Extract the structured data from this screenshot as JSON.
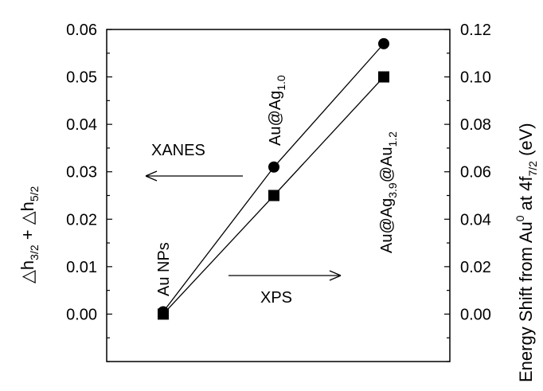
{
  "chart_data": {
    "type": "line",
    "title": "",
    "x": [
      0,
      1,
      2
    ],
    "point_labels": [
      {
        "main": "Au NPs",
        "sub": "",
        "rest": []
      },
      {
        "main": "Au@Ag",
        "sub": "1.0",
        "rest": []
      },
      {
        "main": "Au@Ag",
        "sub": "3.9",
        "rest": [
          [
            "@Au",
            "1.2"
          ]
        ]
      }
    ],
    "series": [
      {
        "axis": "left",
        "marker": "circle",
        "values": [
          0.0005,
          0.031,
          0.057
        ]
      },
      {
        "axis": "right",
        "marker": "square",
        "values": [
          0.0,
          0.05,
          0.1
        ]
      }
    ],
    "y_left": {
      "label_parts": [
        [
          "△h",
          "3/2"
        ],
        [
          " + △h",
          "5/2"
        ]
      ],
      "ylim": [
        -0.01,
        0.06
      ],
      "ticks": [
        "0.00",
        "0.01",
        "0.02",
        "0.03",
        "0.04",
        "0.05",
        "0.06"
      ]
    },
    "y_right": {
      "label_parts": [
        [
          "Energy Shift from Au",
          ""
        ],
        [
          "0",
          "sup"
        ],
        [
          " at 4f",
          ""
        ],
        [
          "7/2",
          "sub"
        ],
        [
          " (eV)",
          ""
        ]
      ],
      "ylim": [
        -0.02,
        0.12
      ],
      "ticks": [
        "0.00",
        "0.02",
        "0.04",
        "0.06",
        "0.08",
        "0.10",
        "0.12"
      ]
    },
    "annotations": {
      "left_arrow": "XANES",
      "right_arrow": "XPS"
    },
    "grid": false,
    "legend": "none"
  }
}
